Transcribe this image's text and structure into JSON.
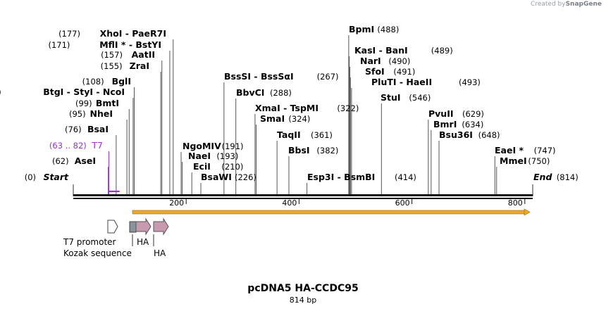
{
  "credit": {
    "prefix": "Created by",
    "brand": "SnapGene"
  },
  "map": {
    "name": "pcDNA5 HA-CCDC95",
    "size_label": "814 bp",
    "length_bp": 814,
    "ticks": [
      {
        "bp": 200,
        "label": "200"
      },
      {
        "bp": 400,
        "label": "400"
      },
      {
        "bp": 600,
        "label": "600"
      },
      {
        "bp": 800,
        "label": "800"
      }
    ],
    "colors": {
      "enzyme": "#000000",
      "primer": "#9c32c8",
      "arrow": "#f5a623",
      "ha": "#c89aaf",
      "kozak": "#8a929b",
      "promoter": "#ffffff"
    }
  },
  "sites": [
    {
      "pos": "(0)",
      "names": [
        "Start"
      ],
      "bp": 0,
      "italic": true
    },
    {
      "pos": "(62)",
      "names": [
        "AseI"
      ],
      "bp": 62
    },
    {
      "pos": "(63 .. 82)",
      "names": [
        "T7"
      ],
      "bp": 63,
      "primer": true
    },
    {
      "pos": "(76)",
      "names": [
        "BsaI"
      ],
      "bp": 76
    },
    {
      "pos": "(95)",
      "names": [
        "NheI"
      ],
      "bp": 95
    },
    {
      "pos": "(99)",
      "names": [
        "BmtI"
      ],
      "bp": 99
    },
    {
      "pos": "(106)",
      "names": [
        "BtgI",
        "StyI",
        "NcoI"
      ],
      "bp": 106
    },
    {
      "pos": "(108)",
      "names": [
        "BglI"
      ],
      "bp": 108
    },
    {
      "pos": "(155)",
      "names": [
        "ZraI"
      ],
      "bp": 155
    },
    {
      "pos": "(157)",
      "names": [
        "AatII"
      ],
      "bp": 157
    },
    {
      "pos": "(171)",
      "names": [
        "MflI *",
        "BstYI"
      ],
      "bp": 171
    },
    {
      "pos": "(177)",
      "names": [
        "XhoI",
        "PaeR7I"
      ],
      "bp": 177
    },
    {
      "pos": "(191)",
      "names": [
        "NgoMIV"
      ],
      "bp": 191
    },
    {
      "pos": "(193)",
      "names": [
        "NaeI"
      ],
      "bp": 193
    },
    {
      "pos": "(210)",
      "names": [
        "EciI"
      ],
      "bp": 210
    },
    {
      "pos": "(226)",
      "names": [
        "BsaWI"
      ],
      "bp": 226
    },
    {
      "pos": "(267)",
      "names": [
        "BssSI",
        "BssSαI"
      ],
      "bp": 267
    },
    {
      "pos": "(288)",
      "names": [
        "BbvCI"
      ],
      "bp": 288
    },
    {
      "pos": "(322)",
      "names": [
        "XmaI",
        "TspMI"
      ],
      "bp": 322
    },
    {
      "pos": "(324)",
      "names": [
        "SmaI"
      ],
      "bp": 324
    },
    {
      "pos": "(361)",
      "names": [
        "TaqII"
      ],
      "bp": 361
    },
    {
      "pos": "(382)",
      "names": [
        "BbsI"
      ],
      "bp": 382
    },
    {
      "pos": "(414)",
      "names": [
        "Esp3I",
        "BsmBI"
      ],
      "bp": 414
    },
    {
      "pos": "(488)",
      "names": [
        "BpmI"
      ],
      "bp": 488
    },
    {
      "pos": "(489)",
      "names": [
        "KasI",
        "BanI"
      ],
      "bp": 489
    },
    {
      "pos": "(490)",
      "names": [
        "NarI"
      ],
      "bp": 490
    },
    {
      "pos": "(491)",
      "names": [
        "SfoI"
      ],
      "bp": 491
    },
    {
      "pos": "(493)",
      "names": [
        "PluTI",
        "HaeII"
      ],
      "bp": 493
    },
    {
      "pos": "(546)",
      "names": [
        "StuI"
      ],
      "bp": 546
    },
    {
      "pos": "(629)",
      "names": [
        "PvuII"
      ],
      "bp": 629
    },
    {
      "pos": "(634)",
      "names": [
        "BmrI"
      ],
      "bp": 634
    },
    {
      "pos": "(648)",
      "names": [
        "Bsu36I"
      ],
      "bp": 648
    },
    {
      "pos": "(747)",
      "names": [
        "EaeI *"
      ],
      "bp": 747
    },
    {
      "pos": "(750)",
      "names": [
        "MmeI"
      ],
      "bp": 750
    },
    {
      "pos": "(814)",
      "names": [
        "End"
      ],
      "bp": 814,
      "italic": true
    }
  ],
  "features": [
    {
      "label": "T7 promoter",
      "type": "promoter"
    },
    {
      "label": "Kozak sequence",
      "type": "kozak"
    },
    {
      "label": "HA",
      "type": "ha"
    },
    {
      "label": "HA",
      "type": "ha"
    }
  ]
}
